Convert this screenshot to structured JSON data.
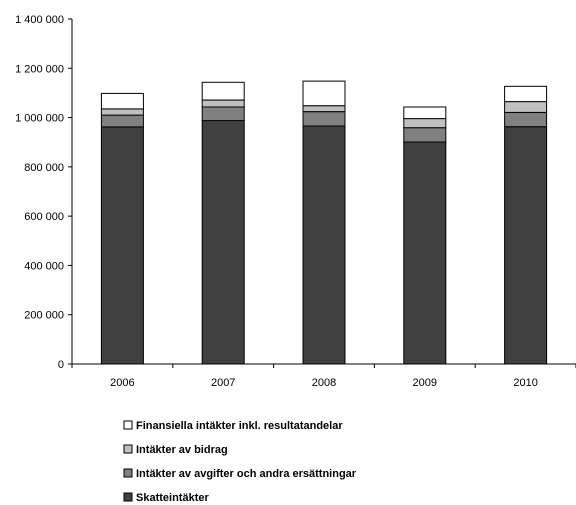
{
  "chart_data": {
    "type": "bar",
    "stacked": true,
    "categories": [
      "2006",
      "2007",
      "2008",
      "2009",
      "2010"
    ],
    "series": [
      {
        "name": "Skatteintäkter",
        "values": [
          962000,
          988000,
          966000,
          901000,
          963000
        ],
        "color": "#404040"
      },
      {
        "name": "Intäkter av avgifter och andra ersättningar",
        "values": [
          48000,
          55000,
          58000,
          58000,
          58000
        ],
        "color": "#808080"
      },
      {
        "name": "Intäkter av bidrag",
        "values": [
          25000,
          28000,
          24000,
          37000,
          44000
        ],
        "color": "#c0c0c0"
      },
      {
        "name": "Finansiella intäkter inkl. resultatandelar",
        "values": [
          63000,
          72000,
          100000,
          47000,
          62000
        ],
        "color": "#ffffff"
      }
    ],
    "legend_order": [
      3,
      2,
      1,
      0
    ],
    "y_ticks": [
      "0",
      "200 000",
      "400 000",
      "600 000",
      "800 000",
      "1 000 000",
      "1 200 000",
      "1 400 000"
    ],
    "ylim": [
      0,
      1400000
    ],
    "y_step": 200000,
    "grid": false,
    "legend_position": "bottom-left"
  }
}
